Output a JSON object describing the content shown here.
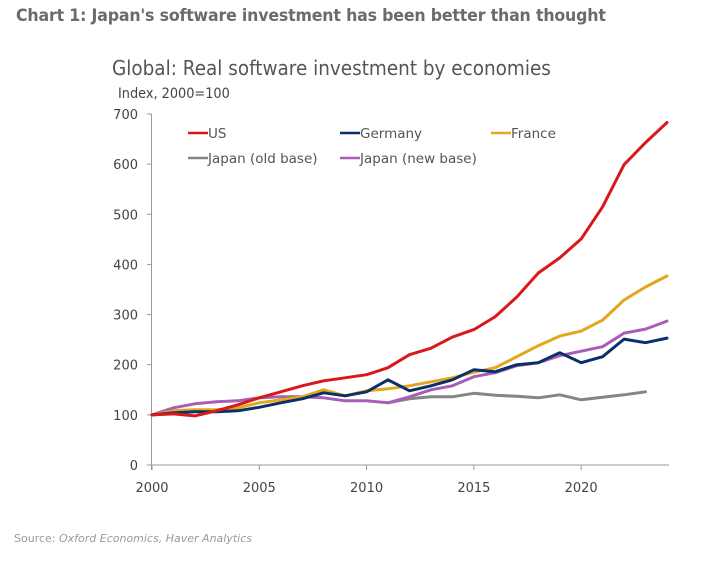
{
  "heading": "Chart 1: Japan's software investment has been better than thought",
  "source": {
    "prefix": "Source: ",
    "text": "Oxford Economics, Haver Analytics"
  },
  "chart_data": {
    "type": "line",
    "title": "Global: Real software investment by economies",
    "subtitle": "Index, 2000=100",
    "xlabel": "",
    "ylabel": "Index, 2000=100",
    "xlim": [
      2000,
      2024
    ],
    "ylim": [
      0,
      700
    ],
    "x_ticks": [
      2000,
      2005,
      2010,
      2015,
      2020
    ],
    "y_ticks": [
      0,
      100,
      200,
      300,
      400,
      500,
      600,
      700
    ],
    "grid": false,
    "legend_position": "top-left",
    "x": [
      2000,
      2001,
      2002,
      2003,
      2004,
      2005,
      2006,
      2007,
      2008,
      2009,
      2010,
      2011,
      2012,
      2013,
      2014,
      2015,
      2016,
      2017,
      2018,
      2019,
      2020,
      2021,
      2022,
      2023,
      2024
    ],
    "series": [
      {
        "name": "US",
        "color": "#d7191c",
        "values": [
          100,
          102,
          98,
          108,
          120,
          134,
          146,
          158,
          168,
          174,
          180,
          194,
          220,
          233,
          255,
          270,
          296,
          335,
          383,
          413,
          451,
          515,
          599,
          643,
          683
        ]
      },
      {
        "name": "Germany",
        "color": "#0b2f6b",
        "values": [
          100,
          104,
          106,
          106,
          108,
          115,
          124,
          132,
          144,
          138,
          146,
          170,
          148,
          158,
          170,
          190,
          186,
          200,
          204,
          224,
          204,
          216,
          251,
          244,
          253
        ]
      },
      {
        "name": "France",
        "color": "#e0a81a",
        "values": [
          100,
          108,
          110,
          110,
          114,
          124,
          130,
          136,
          150,
          138,
          148,
          152,
          158,
          166,
          174,
          185,
          194,
          216,
          238,
          257,
          267,
          289,
          329,
          355,
          377
        ]
      },
      {
        "name": "Japan (old base)",
        "color": "#858585",
        "values": [
          null,
          null,
          null,
          null,
          null,
          null,
          null,
          null,
          null,
          null,
          null,
          124,
          132,
          136,
          136,
          143,
          139,
          137,
          134,
          140,
          130,
          135,
          140,
          146,
          null
        ]
      },
      {
        "name": "Japan (new base)",
        "color": "#a75fb5",
        "values": [
          100,
          114,
          122,
          126,
          128,
          134,
          136,
          136,
          134,
          128,
          128,
          124,
          136,
          150,
          158,
          176,
          184,
          198,
          204,
          218,
          227,
          236,
          263,
          271,
          287
        ]
      }
    ]
  }
}
